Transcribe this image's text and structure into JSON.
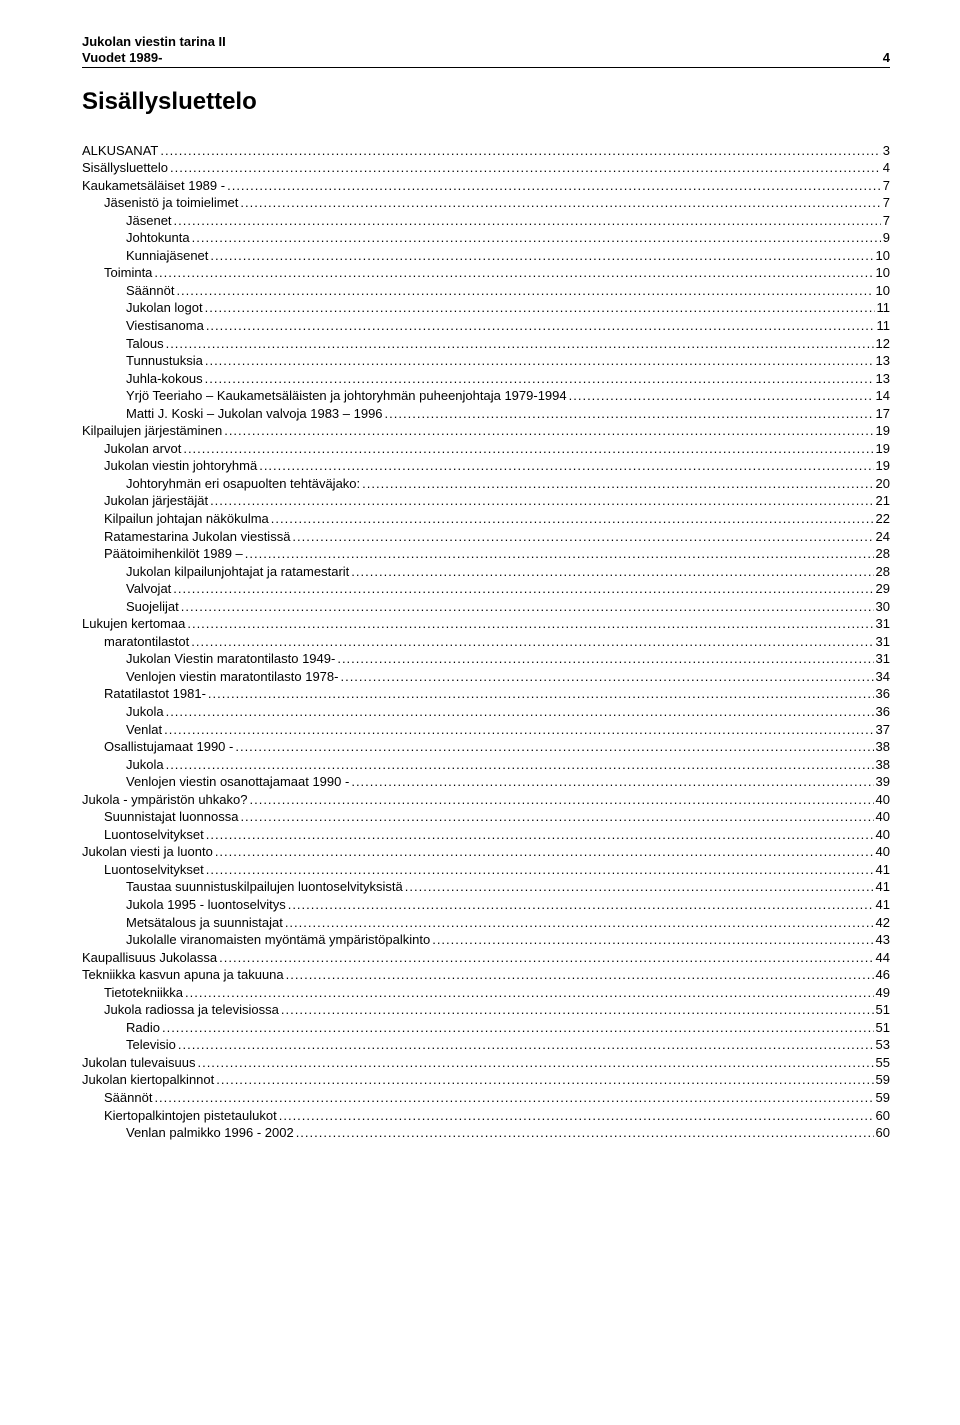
{
  "header": {
    "line1": "Jukolan viestin tarina II",
    "line2_left": "Vuodet 1989-",
    "line2_right": "4",
    "rule_color": "#000000"
  },
  "title": "Sisällysluettelo",
  "colors": {
    "text": "#000000",
    "background": "#ffffff"
  },
  "fonts": {
    "body_pt": 10,
    "title_pt": 18,
    "header_pt": 10,
    "family": "Arial"
  },
  "toc": [
    {
      "label": "ALKUSANAT",
      "page": "3",
      "indent": 0
    },
    {
      "label": "Sisällysluettelo",
      "page": "4",
      "indent": 0
    },
    {
      "label": "Kaukametsäläiset 1989 -",
      "page": "7",
      "indent": 0
    },
    {
      "label": "Jäsenistö ja toimielimet",
      "page": "7",
      "indent": 1
    },
    {
      "label": "Jäsenet",
      "page": "7",
      "indent": 2
    },
    {
      "label": "Johtokunta",
      "page": "9",
      "indent": 2
    },
    {
      "label": "Kunniajäsenet",
      "page": "10",
      "indent": 2
    },
    {
      "label": "Toiminta",
      "page": "10",
      "indent": 1
    },
    {
      "label": "Säännöt",
      "page": "10",
      "indent": 2
    },
    {
      "label": "Jukolan logot",
      "page": "11",
      "indent": 2
    },
    {
      "label": "Viestisanoma",
      "page": "11",
      "indent": 2
    },
    {
      "label": "Talous",
      "page": "12",
      "indent": 2
    },
    {
      "label": "Tunnustuksia",
      "page": "13",
      "indent": 2
    },
    {
      "label": "Juhla-kokous",
      "page": "13",
      "indent": 2
    },
    {
      "label": "Yrjö Teeriaho – Kaukametsäläisten ja johtoryhmän puheenjohtaja 1979-1994",
      "page": "14",
      "indent": 2
    },
    {
      "label": "Matti J. Koski – Jukolan valvoja 1983 – 1996",
      "page": "17",
      "indent": 2
    },
    {
      "label": "Kilpailujen järjestäminen",
      "page": "19",
      "indent": 0
    },
    {
      "label": "Jukolan arvot",
      "page": "19",
      "indent": 1
    },
    {
      "label": "Jukolan viestin johtoryhmä",
      "page": "19",
      "indent": 1
    },
    {
      "label": "Johtoryhmän eri osapuolten tehtäväjako:",
      "page": "20",
      "indent": 2
    },
    {
      "label": "Jukolan järjestäjät",
      "page": "21",
      "indent": 1
    },
    {
      "label": "Kilpailun johtajan näkökulma",
      "page": "22",
      "indent": 1
    },
    {
      "label": "Ratamestarina Jukolan viestissä",
      "page": "24",
      "indent": 1
    },
    {
      "label": "Päätoimihenkilöt 1989 –",
      "page": "28",
      "indent": 1
    },
    {
      "label": "Jukolan kilpailunjohtajat ja ratamestarit",
      "page": "28",
      "indent": 2
    },
    {
      "label": "Valvojat",
      "page": "29",
      "indent": 2
    },
    {
      "label": "Suojelijat",
      "page": "30",
      "indent": 2
    },
    {
      "label": "Lukujen kertomaa",
      "page": "31",
      "indent": 0
    },
    {
      "label": "maratontilastot",
      "page": "31",
      "indent": 1
    },
    {
      "label": "Jukolan Viestin maratontilasto 1949-",
      "page": "31",
      "indent": 2
    },
    {
      "label": "Venlojen viestin maratontilasto 1978-",
      "page": "34",
      "indent": 2
    },
    {
      "label": "Ratatilastot 1981-",
      "page": "36",
      "indent": 1
    },
    {
      "label": "Jukola",
      "page": "36",
      "indent": 2
    },
    {
      "label": "Venlat",
      "page": "37",
      "indent": 2
    },
    {
      "label": "Osallistujamaat 1990 -",
      "page": "38",
      "indent": 1
    },
    {
      "label": "Jukola",
      "page": "38",
      "indent": 2
    },
    {
      "label": "Venlojen viestin osanottajamaat 1990 -",
      "page": "39",
      "indent": 2
    },
    {
      "label": "Jukola - ympäristön uhkako?",
      "page": "40",
      "indent": 0
    },
    {
      "label": "Suunnistajat luonnossa",
      "page": "40",
      "indent": 1
    },
    {
      "label": "Luontoselvitykset",
      "page": "40",
      "indent": 1
    },
    {
      "label": "Jukolan viesti ja luonto",
      "page": "40",
      "indent": 0
    },
    {
      "label": "Luontoselvitykset",
      "page": "41",
      "indent": 1
    },
    {
      "label": "Taustaa suunnistuskilpailujen luontoselvityksistä",
      "page": "41",
      "indent": 2
    },
    {
      "label": "Jukola 1995 - luontoselvitys",
      "page": "41",
      "indent": 2
    },
    {
      "label": "Metsätalous ja suunnistajat",
      "page": "42",
      "indent": 2
    },
    {
      "label": "Jukolalle viranomaisten myöntämä ympäristöpalkinto",
      "page": "43",
      "indent": 2
    },
    {
      "label": "Kaupallisuus Jukolassa",
      "page": "44",
      "indent": 0
    },
    {
      "label": "Tekniikka kasvun apuna ja takuuna",
      "page": "46",
      "indent": 0
    },
    {
      "label": "Tietotekniikka",
      "page": "49",
      "indent": 1
    },
    {
      "label": "Jukola radiossa ja televisiossa",
      "page": "51",
      "indent": 1
    },
    {
      "label": "Radio",
      "page": "51",
      "indent": 2
    },
    {
      "label": "Televisio",
      "page": "53",
      "indent": 2
    },
    {
      "label": "Jukolan tulevaisuus",
      "page": "55",
      "indent": 0
    },
    {
      "label": "Jukolan kiertopalkinnot",
      "page": "59",
      "indent": 0
    },
    {
      "label": "Säännöt",
      "page": "59",
      "indent": 1
    },
    {
      "label": "Kiertopalkintojen pistetaulukot",
      "page": "60",
      "indent": 1
    },
    {
      "label": "Venlan palmikko 1996 - 2002",
      "page": "60",
      "indent": 2
    }
  ]
}
